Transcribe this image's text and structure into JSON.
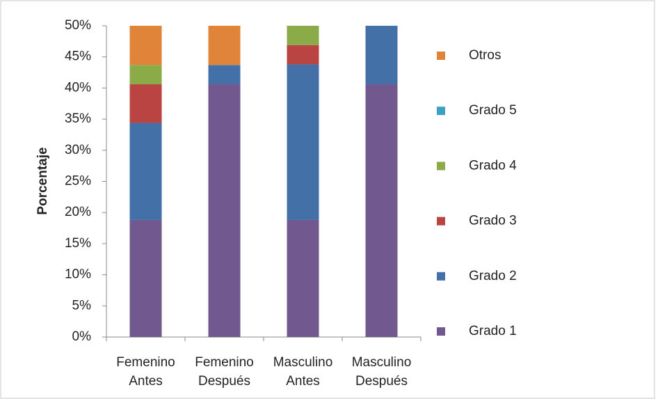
{
  "chart_data": {
    "type": "stacked_bar",
    "y_label": "Porcentaje",
    "categories": [
      "Femenino Antes",
      "Femenino Después",
      "Masculino Antes",
      "Masculino Después"
    ],
    "series": [
      {
        "name": "Grado 1",
        "color": "#71588f",
        "values": [
          18.8,
          40.6,
          18.8,
          40.6
        ]
      },
      {
        "name": "Grado 2",
        "color": "#4470a8",
        "values": [
          15.6,
          3.1,
          25,
          9.4
        ]
      },
      {
        "name": "Grado 3",
        "color": "#b94441",
        "values": [
          6.2,
          0,
          3.1,
          0
        ]
      },
      {
        "name": "Grado 4",
        "color": "#8bab48",
        "values": [
          3.1,
          0,
          3.1,
          0
        ]
      },
      {
        "name": "Grado 5",
        "color": "#3ca1c0",
        "values": [
          0,
          0,
          0,
          0
        ]
      },
      {
        "name": "Otros",
        "color": "#e0843a",
        "values": [
          6.3,
          6.3,
          0,
          0
        ]
      }
    ],
    "ylim": [
      0,
      50
    ],
    "yticks": [
      {
        "value": 0,
        "label": "0%"
      },
      {
        "value": 5,
        "label": "5%"
      },
      {
        "value": 10,
        "label": "10%"
      },
      {
        "value": 15,
        "label": "15%"
      },
      {
        "value": 20,
        "label": "20%"
      },
      {
        "value": 25,
        "label": "25%"
      },
      {
        "value": 30,
        "label": "30%"
      },
      {
        "value": 35,
        "label": "35%"
      },
      {
        "value": 40,
        "label": "40%"
      },
      {
        "value": 45,
        "label": "45%"
      },
      {
        "value": 50,
        "label": "50%"
      }
    ],
    "legend": "right"
  }
}
